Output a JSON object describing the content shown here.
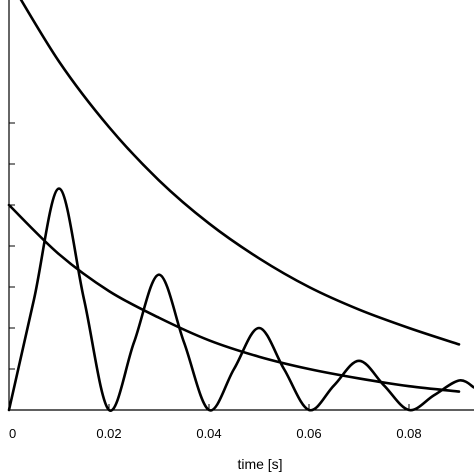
{
  "chart_data": {
    "type": "line",
    "title": "",
    "xlabel": "time [s]",
    "ylabel": "",
    "xlim": [
      0,
      0.093
    ],
    "ylim": [
      0,
      1
    ],
    "x_ticks": [
      0,
      0.02,
      0.04,
      0.06,
      0.08
    ],
    "x_tick_labels": [
      "0",
      "0.02",
      "0.04",
      "0.06",
      "0.08"
    ],
    "y_ticks": [
      0.1,
      0.2,
      0.3,
      0.4,
      0.5,
      0.6,
      0.7
    ],
    "y_tick_labels": [],
    "grid": false,
    "series": [
      {
        "x": [
          0,
          0.01,
          0.02,
          0.03,
          0.04,
          0.05,
          0.06,
          0.07,
          0.08,
          0.09
        ],
        "y": [
          1.05,
          0.85,
          0.69,
          0.56,
          0.455,
          0.37,
          0.3,
          0.245,
          0.2,
          0.16
        ]
      },
      {
        "x": [
          0,
          0.01,
          0.02,
          0.03,
          0.04,
          0.05,
          0.06,
          0.07,
          0.08,
          0.09
        ],
        "y": [
          0.5,
          0.38,
          0.29,
          0.225,
          0.17,
          0.13,
          0.1,
          0.077,
          0.058,
          0.045
        ]
      },
      {
        "x": [
          0,
          0.005,
          0.01,
          0.015,
          0.02,
          0.025,
          0.03,
          0.035,
          0.04,
          0.045,
          0.05,
          0.055,
          0.06,
          0.065,
          0.07,
          0.075,
          0.08,
          0.085,
          0.09,
          0.093
        ],
        "y": [
          0,
          0.27,
          0.54,
          0.27,
          0,
          0.165,
          0.33,
          0.165,
          0,
          0.1,
          0.2,
          0.1,
          0,
          0.06,
          0.12,
          0.06,
          0,
          0.036,
          0.072,
          0.055
        ]
      }
    ]
  }
}
